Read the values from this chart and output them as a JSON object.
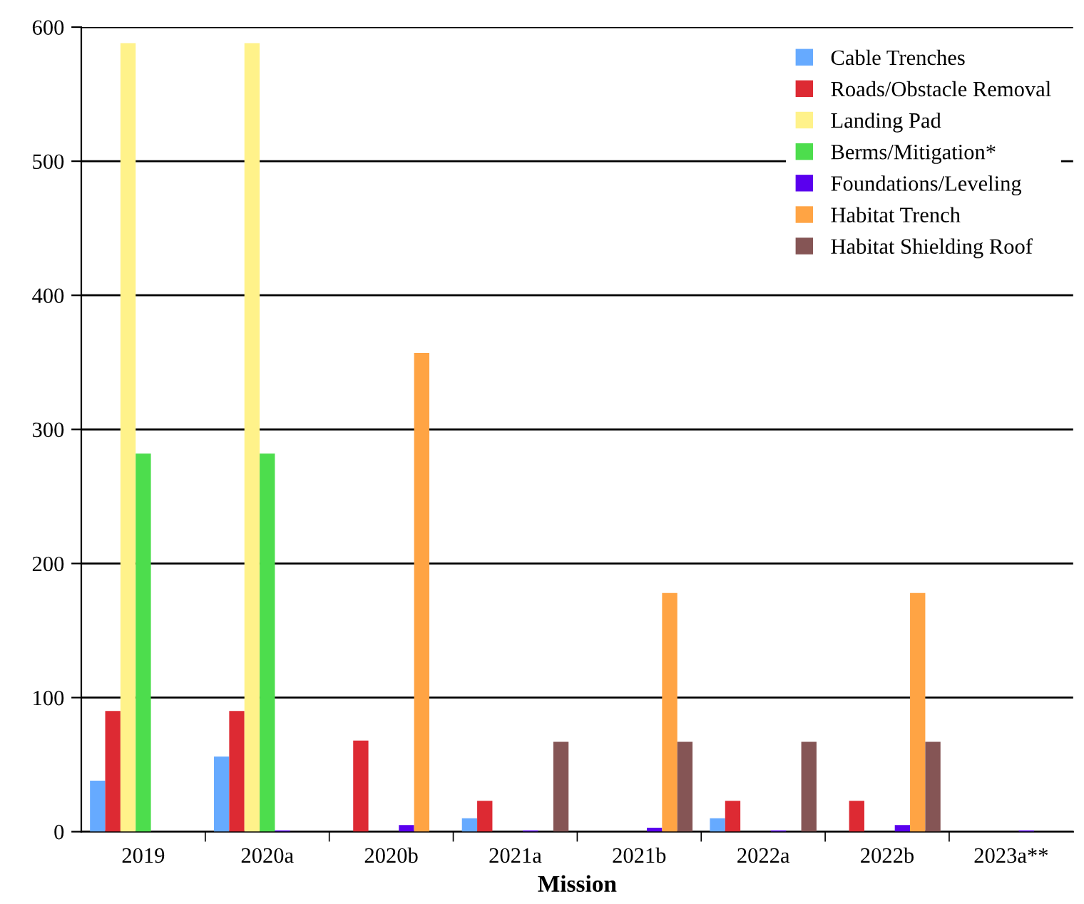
{
  "chart_data": {
    "type": "bar",
    "xlabel": "Mission",
    "categories": [
      "2019",
      "2020a",
      "2020b",
      "2021a",
      "2021b",
      "2022a",
      "2022b",
      "2023a**"
    ],
    "series": [
      {
        "name": "Cable Trenches",
        "color": "#66aaff",
        "values": [
          38,
          56,
          null,
          10,
          null,
          10,
          null,
          null
        ]
      },
      {
        "name": "Roads/Obstacle Removal",
        "color": "#dd2a33",
        "values": [
          90,
          90,
          68,
          23,
          null,
          23,
          23,
          null
        ]
      },
      {
        "name": "Landing Pad",
        "color": "#fff28a",
        "values": [
          588,
          588,
          null,
          null,
          null,
          null,
          null,
          null
        ]
      },
      {
        "name": "Berms/Mitigation*",
        "color": "#4ddd4d",
        "values": [
          282,
          282,
          null,
          null,
          null,
          null,
          null,
          null
        ]
      },
      {
        "name": "Foundations/Leveling",
        "color": "#5a00ee",
        "values": [
          null,
          1,
          5,
          1,
          3,
          1,
          5,
          1
        ]
      },
      {
        "name": "Habitat Trench",
        "color": "#ffa444",
        "values": [
          null,
          null,
          357,
          null,
          178,
          null,
          178,
          null
        ]
      },
      {
        "name": "Habitat Shielding Roof",
        "color": "#855555",
        "values": [
          null,
          null,
          null,
          67,
          67,
          67,
          67,
          null
        ]
      }
    ],
    "ylim": [
      0,
      600
    ],
    "yticks": [
      0,
      100,
      200,
      300,
      400,
      500,
      600
    ],
    "grid": "y",
    "legend": "top right"
  }
}
